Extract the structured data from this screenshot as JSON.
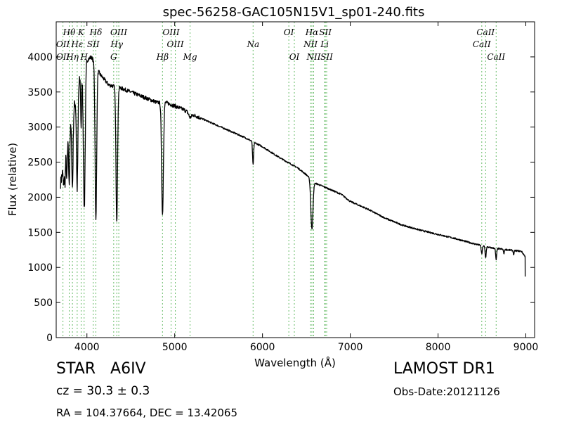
{
  "chart_data": {
    "type": "line",
    "title": "spec-56258-GAC105N15V1_sp01-240.fits",
    "xlabel": "Wavelength (Å)",
    "ylabel": "Flux (relative)",
    "xlim": [
      3650,
      9100
    ],
    "ylim": [
      0,
      4500
    ],
    "xticks": [
      4000,
      5000,
      6000,
      7000,
      8000,
      9000
    ],
    "yticks": [
      0,
      500,
      1000,
      1500,
      2000,
      2500,
      3000,
      3500,
      4000
    ],
    "grid": false,
    "line_color": "#000000",
    "marker_color": "#66bb66",
    "spectrum": {
      "continuum": [
        [
          3700,
          2200
        ],
        [
          3800,
          2900
        ],
        [
          3900,
          3600
        ],
        [
          4000,
          3950
        ],
        [
          4050,
          4000
        ],
        [
          4150,
          3750
        ],
        [
          4250,
          3600
        ],
        [
          4400,
          3550
        ],
        [
          4500,
          3500
        ],
        [
          4600,
          3450
        ],
        [
          4700,
          3400
        ],
        [
          4800,
          3350
        ],
        [
          4900,
          3350
        ],
        [
          5000,
          3300
        ],
        [
          5100,
          3250
        ],
        [
          5200,
          3180
        ],
        [
          5400,
          3070
        ],
        [
          5600,
          2960
        ],
        [
          5800,
          2850
        ],
        [
          6000,
          2720
        ],
        [
          6200,
          2560
        ],
        [
          6400,
          2420
        ],
        [
          6500,
          2320
        ],
        [
          6600,
          2200
        ],
        [
          6700,
          2150
        ],
        [
          6900,
          2040
        ],
        [
          7000,
          1940
        ],
        [
          7200,
          1830
        ],
        [
          7400,
          1700
        ],
        [
          7600,
          1600
        ],
        [
          7800,
          1530
        ],
        [
          8000,
          1470
        ],
        [
          8200,
          1410
        ],
        [
          8400,
          1340
        ],
        [
          8600,
          1280
        ],
        [
          8800,
          1250
        ],
        [
          8950,
          1230
        ],
        [
          8990,
          1160
        ]
      ],
      "absorption": [
        [
          3735,
          300,
          5
        ],
        [
          3750,
          350,
          5
        ],
        [
          3771,
          450,
          5
        ],
        [
          3798,
          700,
          6
        ],
        [
          3835,
          1000,
          7
        ],
        [
          3889,
          1400,
          8
        ],
        [
          3934,
          700,
          5
        ],
        [
          3970,
          2000,
          10
        ],
        [
          4102,
          2200,
          9
        ],
        [
          4340,
          1900,
          9
        ],
        [
          4861,
          1600,
          10
        ],
        [
          5175,
          60,
          15
        ],
        [
          5893,
          330,
          6
        ],
        [
          6563,
          700,
          12
        ],
        [
          8498,
          120,
          6
        ],
        [
          8542,
          160,
          6
        ],
        [
          8662,
          160,
          6
        ],
        [
          8750,
          60,
          5
        ],
        [
          8862,
          60,
          5
        ]
      ],
      "end": [
        8993,
        870
      ]
    },
    "line_markers": [
      {
        "label": "Hθ",
        "wavelength": 3798,
        "row": 1
      },
      {
        "label": "K",
        "wavelength": 3934,
        "row": 1
      },
      {
        "label": "Hδ",
        "wavelength": 4102,
        "row": 1
      },
      {
        "label": "OIII",
        "wavelength": 4363,
        "row": 1
      },
      {
        "label": "OIII",
        "wavelength": 4959,
        "row": 1
      },
      {
        "label": "OI",
        "wavelength": 6300,
        "row": 1
      },
      {
        "label": "Hα",
        "wavelength": 6563,
        "row": 1
      },
      {
        "label": "SII",
        "wavelength": 6716,
        "row": 1
      },
      {
        "label": "CaII",
        "wavelength": 8542,
        "row": 1
      },
      {
        "label": "OII",
        "wavelength": 3727,
        "row": 2
      },
      {
        "label": "Hε",
        "wavelength": 3889,
        "row": 2
      },
      {
        "label": "SII",
        "wavelength": 4072,
        "row": 2
      },
      {
        "label": "Hγ",
        "wavelength": 4340,
        "row": 2
      },
      {
        "label": "OIII",
        "wavelength": 5007,
        "row": 2
      },
      {
        "label": "Na",
        "wavelength": 5893,
        "row": 2
      },
      {
        "label": "NII",
        "wavelength": 6548,
        "row": 2
      },
      {
        "label": "Li",
        "wavelength": 6708,
        "row": 2
      },
      {
        "label": "CaII",
        "wavelength": 8498,
        "row": 2
      },
      {
        "label": "OII",
        "wavelength": 3727,
        "row": 3
      },
      {
        "label": "Hη",
        "wavelength": 3835,
        "row": 3
      },
      {
        "label": "H",
        "wavelength": 3968,
        "row": 3
      },
      {
        "label": "G",
        "wavelength": 4305,
        "row": 3
      },
      {
        "label": "Hβ",
        "wavelength": 4861,
        "row": 3
      },
      {
        "label": "Mg",
        "wavelength": 5175,
        "row": 3
      },
      {
        "label": "OI",
        "wavelength": 6363,
        "row": 3
      },
      {
        "label": "NII",
        "wavelength": 6583,
        "row": 3
      },
      {
        "label": "SII",
        "wavelength": 6731,
        "row": 3
      },
      {
        "label": "CaII",
        "wavelength": 8662,
        "row": 3
      }
    ]
  },
  "info": {
    "object_type": "STAR",
    "subclass": "A6IV",
    "redshift": "cz = 30.3 ± 0.3",
    "coordinates": "RA = 104.37664, DEC = 13.42065",
    "survey": "LAMOST DR1",
    "obs_date": "Obs-Date:20121126"
  }
}
